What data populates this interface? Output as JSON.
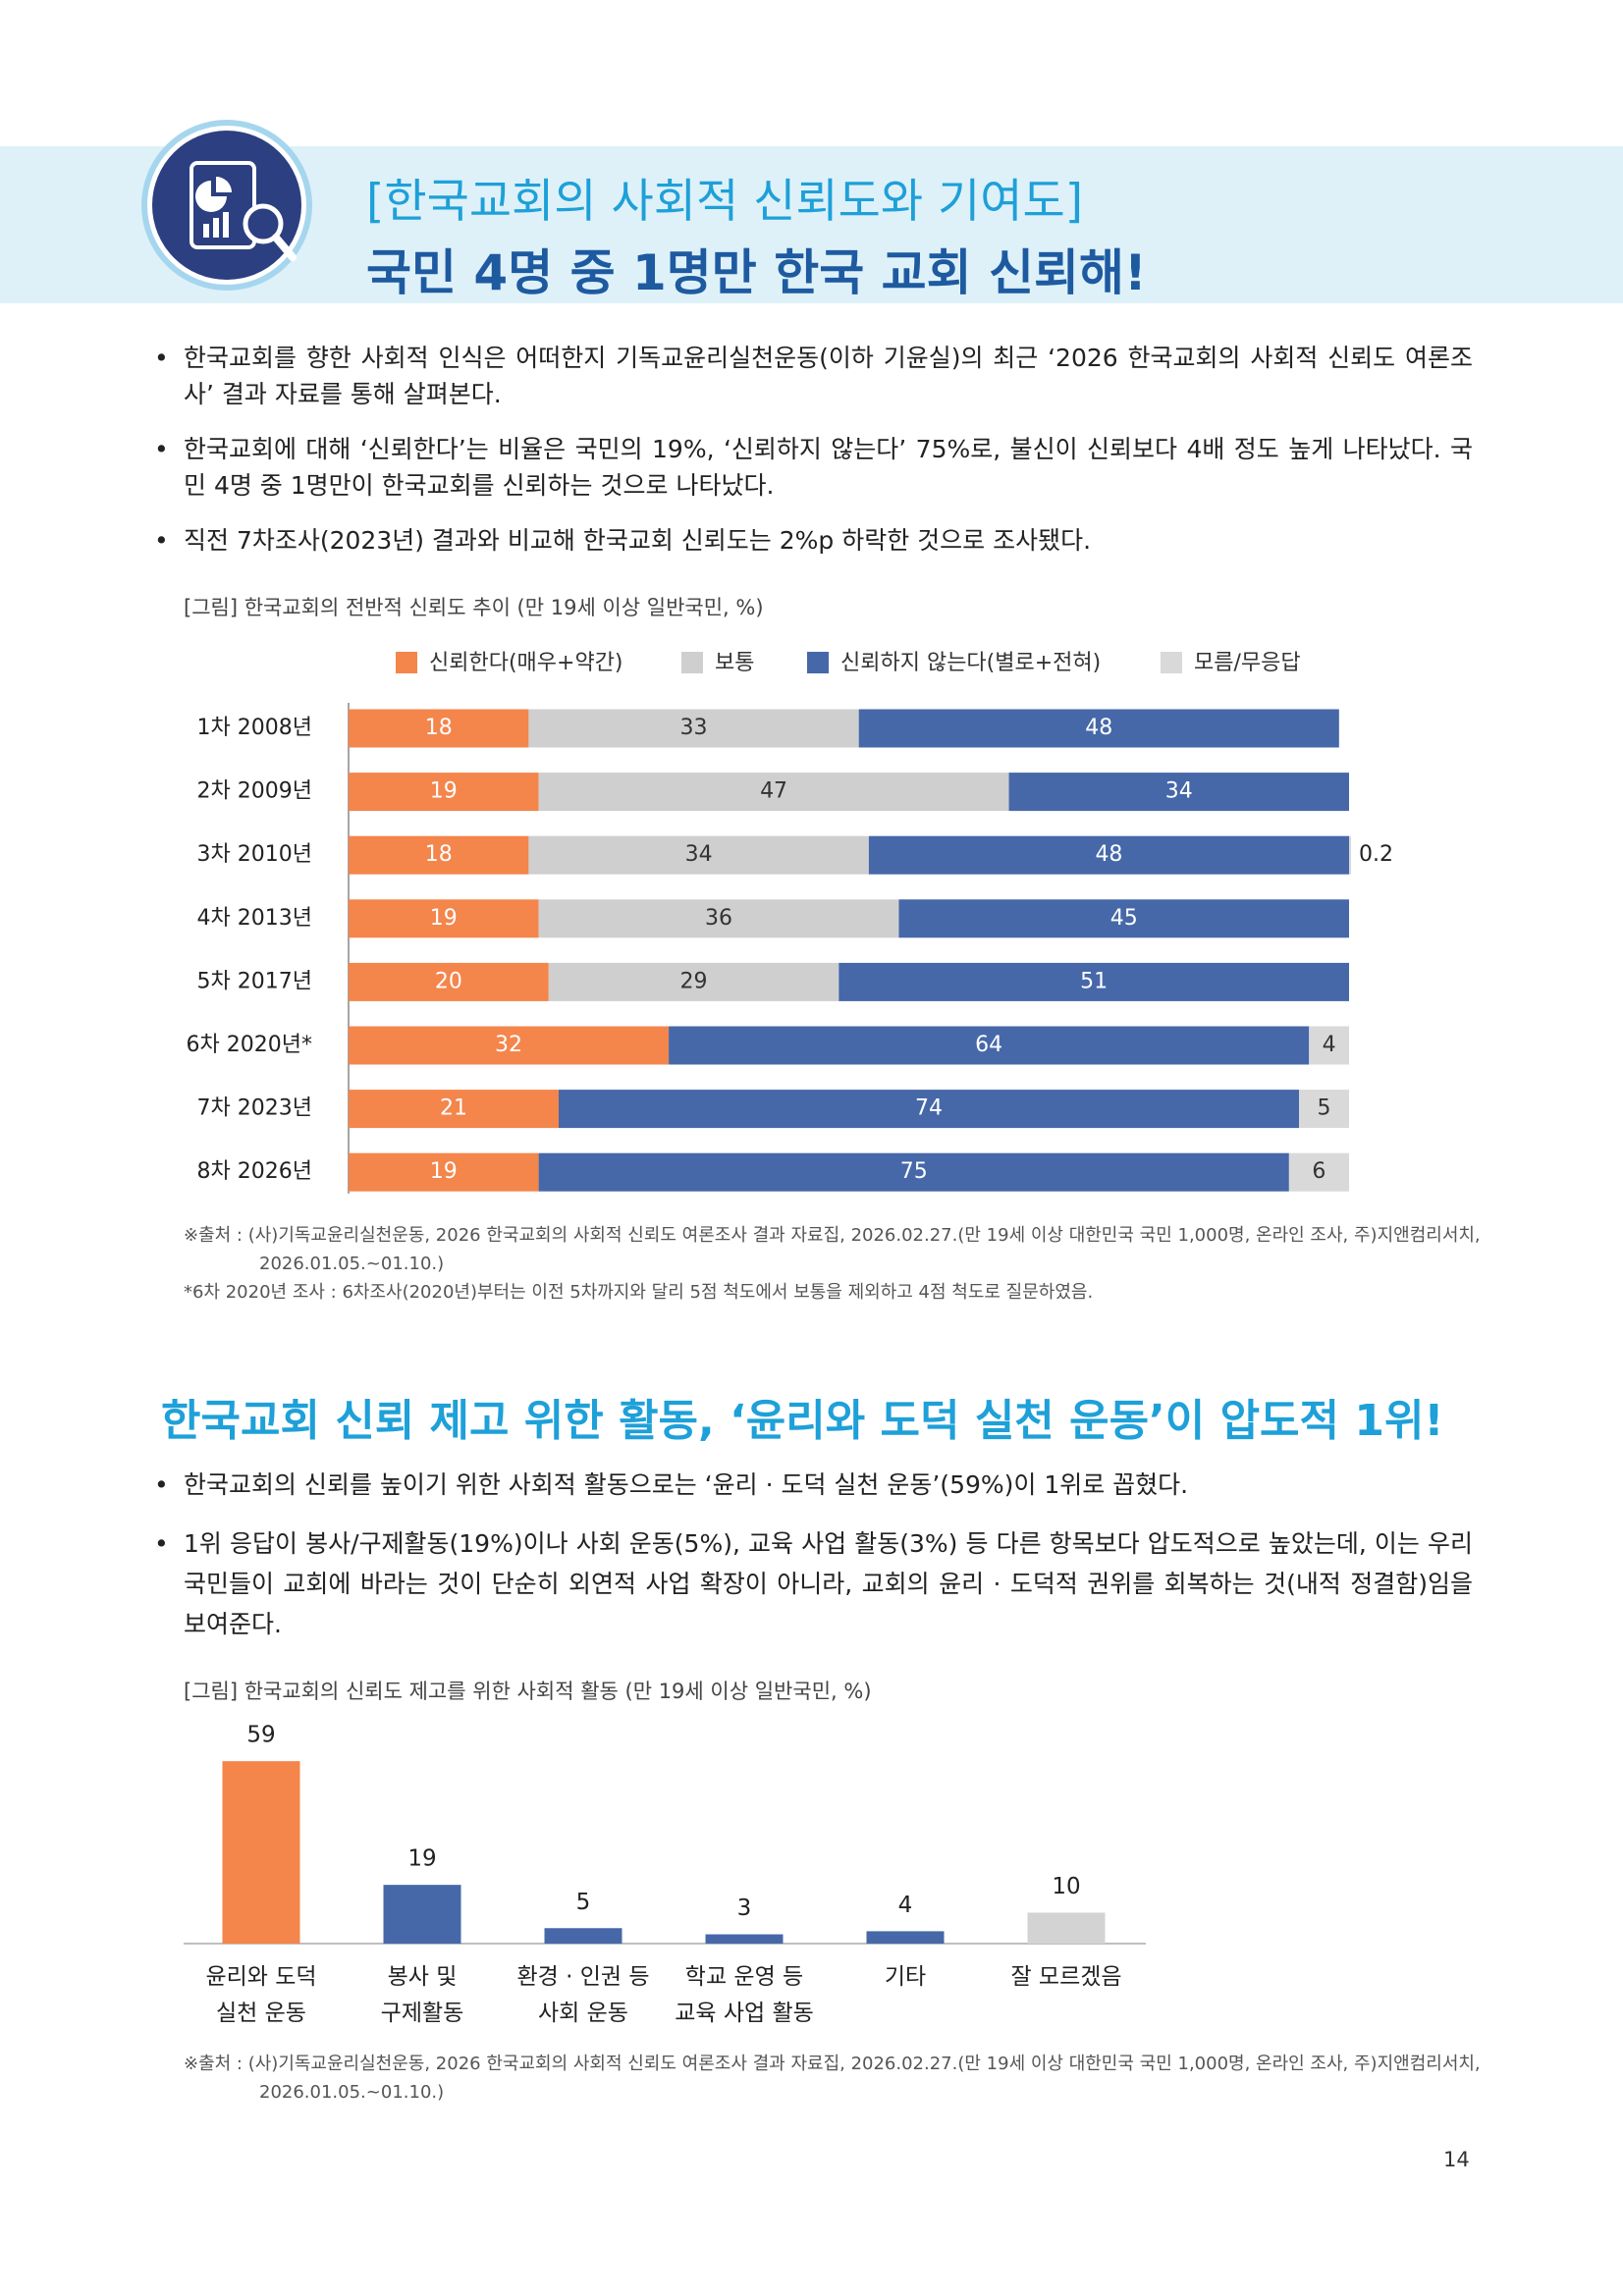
{
  "header": {
    "title": "[한국교회의 사회적 신뢰도와 기여도]",
    "headline": "국민 4명 중 1명만 한국 교회 신뢰해!"
  },
  "section1": {
    "bullets": [
      "한국교회를 향한 사회적 인식은 어떠한지 기독교윤리실천운동(이하 기윤실)의 최근 ‘2026 한국교회의 사회적 신뢰도 여론조사’ 결과 자료를 통해 살펴본다.",
      "한국교회에 대해 ‘신뢰한다’는 비율은 국민의 19%, ‘신뢰하지 않는다’ 75%로, 불신이 신뢰보다 4배 정도 높게 나타났다. 국민 4명 중 1명만이 한국교회를 신뢰하는 것으로 나타났다.",
      "직전 7차조사(2023년) 결과와 비교해 한국교회 신뢰도는 2%p 하락한 것으로 조사됐다."
    ]
  },
  "chart_data": [
    {
      "type": "stacked-barh",
      "title": "[그림] 한국교회의 전반적 신뢰도 추이 (만 19세 이상 일반국민, %)",
      "categories": [
        "1차 2008년",
        "2차 2009년",
        "3차 2010년",
        "4차 2013년",
        "5차 2017년",
        "6차 2020년*",
        "7차 2023년",
        "8차 2026년"
      ],
      "xlim": [
        0,
        100
      ],
      "series": [
        {
          "name": "신뢰한다(매우+약간)",
          "color": "#f4854b",
          "text_color": "#ffffff",
          "values": [
            18,
            19,
            18,
            19,
            20,
            32,
            21,
            19
          ]
        },
        {
          "name": "보통",
          "color": "#cfcfcf",
          "text_color": "#333333",
          "values": [
            33,
            47,
            34,
            36,
            29,
            null,
            null,
            null
          ]
        },
        {
          "name": "신뢰하지 않는다(별로+전혀)",
          "color": "#4668a9",
          "text_color": "#ffffff",
          "values": [
            48,
            34,
            48,
            45,
            51,
            64,
            74,
            75
          ]
        },
        {
          "name": "모름/무응답",
          "color": "#d9d9d9",
          "text_color": "#333333",
          "values": [
            null,
            null,
            0.2,
            null,
            null,
            4,
            5,
            6
          ]
        }
      ]
    },
    {
      "type": "bar",
      "title": "[그림] 한국교회의 신뢰도 제고를 위한 사회적 활동 (만 19세 이상 일반국민, %)",
      "categories": [
        "윤리와 도덕\n실천 운동",
        "봉사 및\n구제활동",
        "환경 · 인권 등\n사회 운동",
        "학교 운영 등\n교육 사업 활동",
        "기타",
        "잘 모르겠음"
      ],
      "values": [
        59,
        19,
        5,
        3,
        4,
        10
      ],
      "colors": [
        "#f4854b",
        "#4668a9",
        "#4668a9",
        "#4668a9",
        "#4668a9",
        "#d3d3d3"
      ],
      "ylim": [
        0,
        60
      ]
    }
  ],
  "notes1": [
    "※출처 : (사)기독교윤리실천운동, 2026 한국교회의 사회적 신뢰도 여론조사 결과 자료집, 2026.02.27.(만 19세 이상 대한민국 국민 1,000명, 온라인 조사, 주)지앤컴리서치, 2026.01.05.~01.10.)",
    "*6차 2020년 조사 : 6차조사(2020년)부터는 이전 5차까지와 달리 5점 척도에서 보통을 제외하고 4점 척도로 질문하였음."
  ],
  "section2": {
    "title": "한국교회 신뢰 제고 위한 활동, ‘윤리와 도덕 실천 운동’이 압도적 1위!",
    "bullets": [
      "한국교회의 신뢰를 높이기 위한 사회적 활동으로는 ‘윤리 · 도덕 실천 운동’(59%)이 1위로 꼽혔다.",
      "1위 응답이 봉사/구제활동(19%)이나 사회 운동(5%), 교육 사업 활동(3%) 등 다른 항목보다 압도적으로 높았는데, 이는 우리 국민들이 교회에 바라는 것이 단순히 외연적 사업 확장이 아니라, 교회의 윤리 · 도덕적 권위를 회복하는 것(내적 정결함)임을 보여준다."
    ]
  },
  "notes2": [
    "※출처 : (사)기독교윤리실천운동, 2026 한국교회의 사회적 신뢰도 여론조사 결과 자료집, 2026.02.27.(만 19세 이상 대한민국 국민 1,000명, 온라인 조사, 주)지앤컴리서치, 2026.01.05.~01.10.)"
  ],
  "page_number": "14"
}
